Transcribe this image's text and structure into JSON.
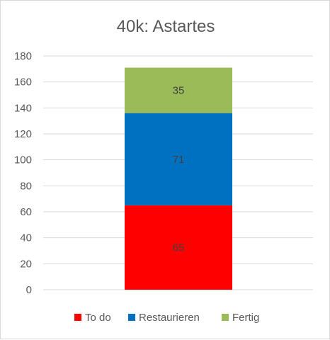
{
  "chart_data": {
    "type": "bar",
    "stacked": true,
    "title": "40k: Astartes",
    "categories": [
      ""
    ],
    "series": [
      {
        "name": "To do",
        "values": [
          65
        ],
        "color": "#ff0000"
      },
      {
        "name": "Restaurieren",
        "values": [
          71
        ],
        "color": "#0070c0"
      },
      {
        "name": "Fertig",
        "values": [
          35
        ],
        "color": "#9bbb59"
      }
    ],
    "ylim": [
      0,
      180
    ],
    "yticks": [
      "0",
      "20",
      "40",
      "60",
      "80",
      "100",
      "120",
      "140",
      "160",
      "180"
    ],
    "grid": true,
    "legend": "bottom",
    "data_labels": true
  }
}
